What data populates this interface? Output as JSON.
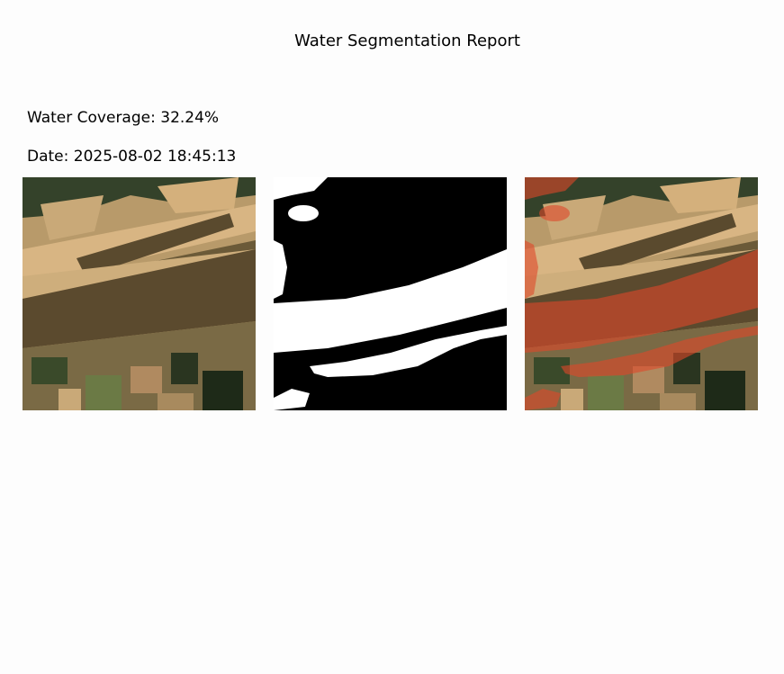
{
  "report": {
    "title": "Water Segmentation Report",
    "coverage_label": "Water Coverage:",
    "coverage_value": "32.24%",
    "date_label": "Date:",
    "date_value": "2025-08-02 18:45:13"
  },
  "images": [
    {
      "name": "satellite-image"
    },
    {
      "name": "water-mask-image"
    },
    {
      "name": "overlay-image"
    }
  ],
  "colors": {
    "background": "#fdfdfd",
    "water_overlay": "#e0472a",
    "mask_water": "#ffffff",
    "mask_land": "#000000"
  }
}
